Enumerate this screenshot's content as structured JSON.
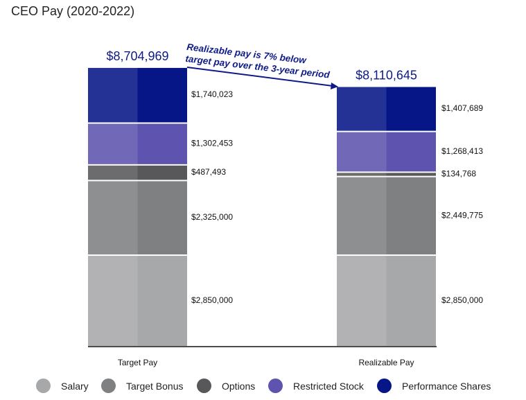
{
  "chart_data": {
    "type": "bar",
    "stacked": true,
    "title": "CEO Pay (2020-2022)",
    "categories": [
      "Target Pay",
      "Realizable Pay"
    ],
    "totals": [
      "$8,704,969",
      "$8,110,645"
    ],
    "series": [
      {
        "name": "Salary",
        "color": "#a7a8aa",
        "values": [
          2850000,
          2850000
        ],
        "labels": [
          "$2,850,000",
          "$2,850,000"
        ]
      },
      {
        "name": "Target Bonus",
        "color": "#7f8082",
        "values": [
          2325000,
          2449775
        ],
        "labels": [
          "$2,325,000",
          "$2,449,775"
        ]
      },
      {
        "name": "Options",
        "color": "#58585b",
        "values": [
          487493,
          134768
        ],
        "labels": [
          "$487,493",
          "$134,768"
        ]
      },
      {
        "name": "Restricted Stock",
        "color": "#5e53ae",
        "values": [
          1302453,
          1268413
        ],
        "labels": [
          "$1,302,453",
          "$1,268,413"
        ]
      },
      {
        "name": "Performance Shares",
        "color": "#061687",
        "values": [
          1740023,
          1407689
        ],
        "labels": [
          "$1,740,023",
          "$1,407,689"
        ]
      }
    ],
    "annotation": [
      "Realizable pay is 7% below",
      "target pay over the 3-year period"
    ],
    "accent_color": "#0d1a87",
    "legend_position": "bottom",
    "grid": false
  }
}
